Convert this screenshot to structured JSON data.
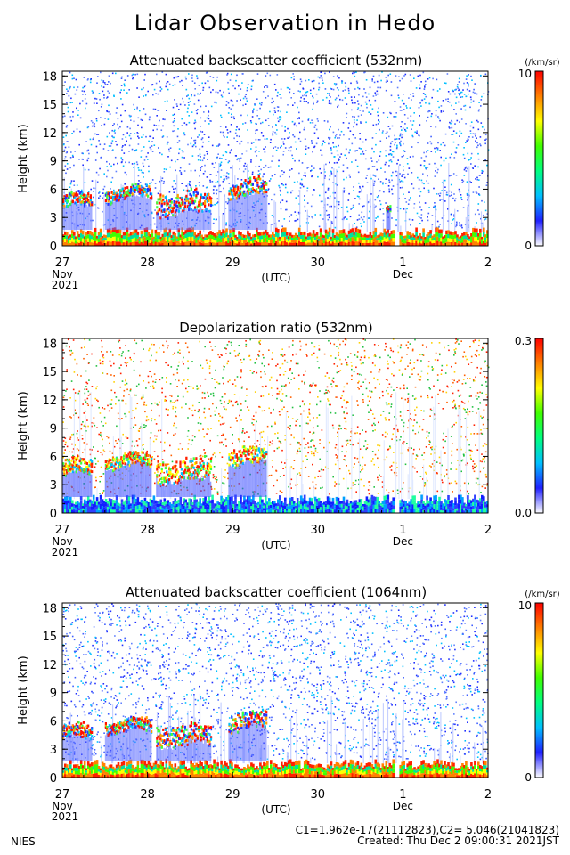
{
  "title": "Lidar Observation in Hedo",
  "footer": {
    "org": "NIES",
    "calibration": "C1=1.962e-17(21112823),C2= 5.046(21041823)",
    "created": "Created: Thu Dec  2 09:00:31 2021JST"
  },
  "colors": {
    "palette": [
      "#ffffff",
      "#2020ff",
      "#00c0ff",
      "#00ff80",
      "#40ff00",
      "#ffff00",
      "#ff8000",
      "#ff0000"
    ]
  },
  "chart_data": [
    {
      "type": "heatmap",
      "title": "Attenuated backscatter coefficient (532nm)",
      "ylabel": "Height (km)",
      "xlabel": "(UTC)",
      "yticks": [
        "0",
        "3",
        "6",
        "9",
        "12",
        "15",
        "18"
      ],
      "ylim": [
        0,
        18.5
      ],
      "xticks": [
        "27",
        "28",
        "29",
        "30",
        "1",
        "2"
      ],
      "xtick_sub": {
        "27": [
          "Nov",
          "2021"
        ],
        "1": [
          "Dec"
        ]
      },
      "colorbar": {
        "max": "10",
        "min": "0",
        "unit": "(/km/sr)"
      },
      "features": {
        "cloud_layers": [
          {
            "t": [
              0.0,
              0.35
            ],
            "h": [
              3.9,
              5.8
            ]
          },
          {
            "t": [
              0.5,
              1.05
            ],
            "h": [
              4.8,
              6.4
            ]
          },
          {
            "t": [
              1.1,
              1.75
            ],
            "h": [
              3.2,
              6.0
            ]
          },
          {
            "t": [
              1.95,
              2.4
            ],
            "h": [
              5.0,
              7.2
            ]
          },
          {
            "t": [
              3.8,
              3.85
            ],
            "h": [
              3.5,
              4.4
            ]
          }
        ],
        "boundary_layer_top_km": 1.7
      }
    },
    {
      "type": "heatmap",
      "title": "Depolarization ratio (532nm)",
      "ylabel": "Height (km)",
      "xlabel": "(UTC)",
      "yticks": [
        "0",
        "3",
        "6",
        "9",
        "12",
        "15",
        "18"
      ],
      "ylim": [
        0,
        18.5
      ],
      "xticks": [
        "27",
        "28",
        "29",
        "30",
        "1",
        "2"
      ],
      "xtick_sub": {
        "27": [
          "Nov",
          "2021"
        ],
        "1": [
          "Dec"
        ]
      },
      "colorbar": {
        "max": "0.3",
        "min": "0.0",
        "unit": ""
      },
      "features": {
        "cloud_layers": [
          {
            "t": [
              0.0,
              0.35
            ],
            "h": [
              3.9,
              5.8
            ]
          },
          {
            "t": [
              0.5,
              1.05
            ],
            "h": [
              4.8,
              6.4
            ]
          },
          {
            "t": [
              1.1,
              1.75
            ],
            "h": [
              3.2,
              6.0
            ]
          },
          {
            "t": [
              1.95,
              2.4
            ],
            "h": [
              5.0,
              7.2
            ]
          }
        ],
        "boundary_layer_top_km": 1.7
      }
    },
    {
      "type": "heatmap",
      "title": "Attenuated backscatter coefficient (1064nm)",
      "ylabel": "Height (km)",
      "xlabel": "(UTC)",
      "yticks": [
        "0",
        "3",
        "6",
        "9",
        "12",
        "15",
        "18"
      ],
      "ylim": [
        0,
        18.5
      ],
      "xticks": [
        "27",
        "28",
        "29",
        "30",
        "1",
        "2"
      ],
      "xtick_sub": {
        "27": [
          "Nov",
          "2021"
        ],
        "1": [
          "Dec"
        ]
      },
      "colorbar": {
        "max": "10",
        "min": "0",
        "unit": "(/km/sr)"
      },
      "features": {
        "cloud_layers": [
          {
            "t": [
              0.0,
              0.35
            ],
            "h": [
              3.9,
              5.8
            ]
          },
          {
            "t": [
              0.5,
              1.05
            ],
            "h": [
              4.8,
              6.4
            ]
          },
          {
            "t": [
              1.1,
              1.75
            ],
            "h": [
              3.2,
              6.0
            ]
          },
          {
            "t": [
              1.95,
              2.4
            ],
            "h": [
              5.0,
              7.2
            ]
          }
        ],
        "boundary_layer_top_km": 1.7
      }
    }
  ]
}
